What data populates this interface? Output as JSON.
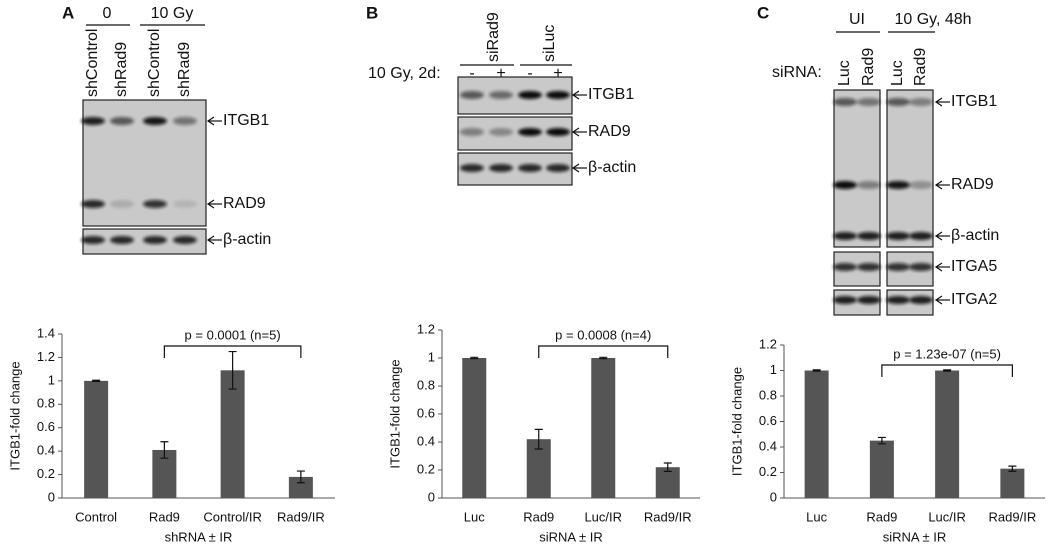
{
  "panels": [
    {
      "label": "A",
      "groups": [
        "0",
        "10 Gy"
      ],
      "lanes": [
        "shControl",
        "shRad9",
        "shControl",
        "shRad9"
      ],
      "bands": [
        "ITGB1",
        "RAD9",
        "β-actin"
      ]
    },
    {
      "label": "B",
      "groups": [
        "siRad9",
        "siLuc"
      ],
      "treatment": "10 Gy, 2d:",
      "lanes": [
        "-",
        "+",
        "-",
        "+"
      ],
      "bands": [
        "ITGB1",
        "RAD9",
        "β-actin"
      ]
    },
    {
      "label": "C",
      "groups": [
        "UI",
        "10 Gy, 48h"
      ],
      "treatment": "siRNA:",
      "lanes": [
        "Luc",
        "Rad9",
        "Luc",
        "Rad9"
      ],
      "bands": [
        "ITGB1",
        "RAD9",
        "β-actin",
        "ITGA5",
        "ITGA2"
      ]
    }
  ],
  "chart_data": [
    {
      "type": "bar",
      "categories": [
        "Control",
        "Rad9",
        "Control/IR",
        "Rad9/IR"
      ],
      "values": [
        1,
        0.41,
        1.09,
        0.18
      ],
      "errors": [
        0.005,
        0.07,
        0.16,
        0.05
      ],
      "color": "#555555",
      "ylim": [
        0,
        1.4
      ],
      "yticks": [
        0,
        0.2,
        0.4,
        0.6,
        0.8,
        1,
        1.2,
        1.4
      ],
      "ylabel": "ITGB1-fold change",
      "xlabel": "shRNA ± IR",
      "annotation": "p = 0.0001 (n=5)",
      "grid": false
    },
    {
      "type": "bar",
      "categories": [
        "Luc",
        "Rad9",
        "Luc/IR",
        "Rad9/IR"
      ],
      "values": [
        1,
        0.42,
        1,
        0.22
      ],
      "errors": [
        0.005,
        0.07,
        0.005,
        0.03
      ],
      "color": "#555555",
      "ylim": [
        0,
        1.2
      ],
      "yticks": [
        0,
        0.2,
        0.4,
        0.6,
        0.8,
        1,
        1.2
      ],
      "ylabel": "ITGB1-fold change",
      "xlabel": "siRNA ± IR",
      "annotation": "p = 0.0008 (n=4)",
      "grid": false
    },
    {
      "type": "bar",
      "categories": [
        "Luc",
        "Rad9",
        "Luc/IR",
        "Rad9/IR"
      ],
      "values": [
        1,
        0.45,
        1,
        0.23
      ],
      "errors": [
        0.005,
        0.025,
        0.005,
        0.02
      ],
      "color": "#555555",
      "ylim": [
        0,
        1.2
      ],
      "yticks": [
        0,
        0.2,
        0.4,
        0.6,
        0.8,
        1,
        1.2
      ],
      "ylabel": "ITGB1-fold change",
      "xlabel": "siRNA ± IR",
      "annotation": "p = 1.23e-07 (n=5)",
      "grid": false
    }
  ]
}
